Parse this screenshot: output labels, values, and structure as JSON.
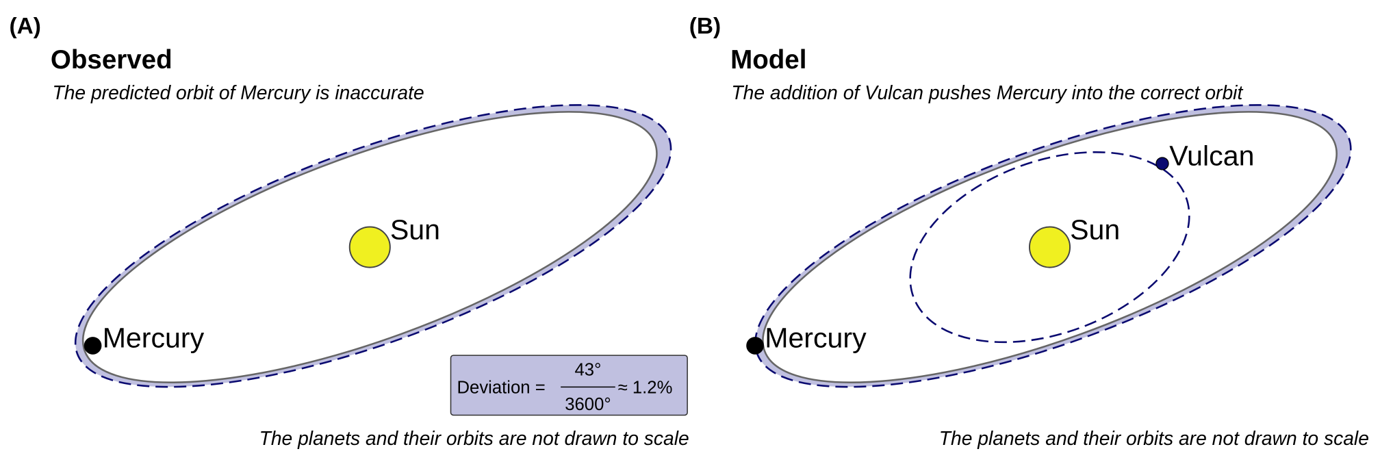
{
  "panels": [
    {
      "label": "(A)",
      "title": "Observed",
      "subtitle": "The predicted orbit of Mercury is inaccurate",
      "sun": "Sun",
      "mercury": "Mercury",
      "footnote": "The planets and their orbits are not drawn to scale",
      "deviation": {
        "lhs": "Deviation =",
        "numerator": "43°",
        "denominator": "3600°",
        "result": "≈ 1.2%"
      }
    },
    {
      "label": "(B)",
      "title": "Model",
      "subtitle": "The addition of Vulcan pushes Mercury into the correct orbit",
      "sun": "Sun",
      "mercury": "Mercury",
      "vulcan": "Vulcan",
      "footnote": "The planets and their orbits are not drawn to scale"
    }
  ]
}
